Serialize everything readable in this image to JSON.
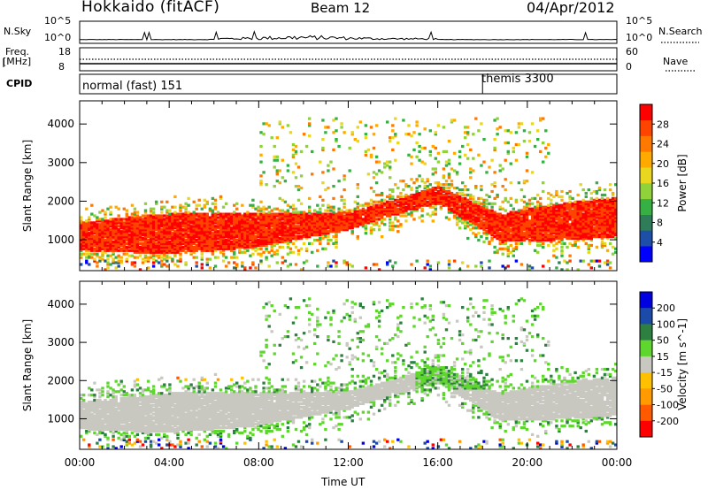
{
  "header": {
    "station": "Hokkaido (fitACF)",
    "beam": "Beam 12",
    "date": "04/Apr/2012"
  },
  "summary_panels": {
    "nsky_label": "N.Sky",
    "nsearch_label": "N.Search",
    "nsky_ticks": [
      "10^5",
      "10^0"
    ],
    "nsearch_ticks": [
      "10^5",
      "10^0"
    ],
    "freq_label": "Freq.",
    "freq_unit": "[MHz]",
    "freq_ticks": [
      "18",
      "8"
    ],
    "nave_label": "Nave",
    "nave_ticks": [
      "60",
      "0"
    ],
    "cpid_label": "CPID",
    "cpid_modes": [
      {
        "name": "normal (fast) 151",
        "start_hour": 0
      },
      {
        "name": "themis 3300",
        "start_hour": 18
      }
    ]
  },
  "chart_data": [
    {
      "type": "heatmap",
      "quantity": "Power",
      "ylabel": "Slant Range [km]",
      "colorbar_label": "Power [dB]",
      "colorbar_ticks": [
        4,
        8,
        12,
        16,
        20,
        24,
        28
      ],
      "colorbar_range": [
        0,
        32
      ],
      "ylim": [
        200,
        4600
      ],
      "yticks": [
        1000,
        2000,
        3000,
        4000
      ],
      "xlim": [
        0,
        24
      ],
      "colors": [
        "#0000ff",
        "#1d4ea8",
        "#2e7d58",
        "#36b043",
        "#8fd23a",
        "#e8d61f",
        "#ffaa00",
        "#ff7800",
        "#ff4400",
        "#ff0000"
      ]
    },
    {
      "type": "heatmap",
      "quantity": "Velocity",
      "ylabel": "Slant Range [km]",
      "xlabel": "Time UT",
      "colorbar_label": "Velocity [m s^-1]",
      "colorbar_ticks": [
        200,
        100,
        50,
        15,
        -15,
        -50,
        -100,
        -200
      ],
      "ylim": [
        200,
        4600
      ],
      "yticks": [
        1000,
        2000,
        3000,
        4000
      ],
      "xlim": [
        0,
        24
      ],
      "xticks": [
        "00:00",
        "04:00",
        "08:00",
        "12:00",
        "16:00",
        "20:00",
        "00:00"
      ],
      "colors": [
        "#ff0000",
        "#ff5a00",
        "#ff9a00",
        "#ffc000",
        "#c8c8c0",
        "#5ed62e",
        "#2e8040",
        "#1c4aa8",
        "#0000e0"
      ]
    }
  ]
}
